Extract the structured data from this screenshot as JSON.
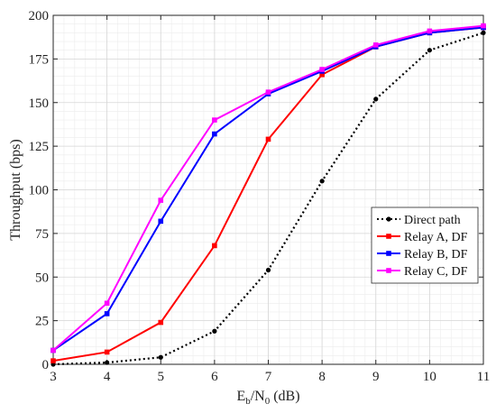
{
  "chart_data": {
    "type": "line",
    "xlabel": "Eb/N0 (dB)",
    "xlabel_parts": {
      "e": "E",
      "b": "b",
      "slash": "/N",
      "zero": "0",
      "unit": " (dB)"
    },
    "ylabel": "Throughput (bps)",
    "xlim": [
      3,
      11
    ],
    "ylim": [
      0,
      200
    ],
    "xticks": [
      3,
      4,
      5,
      6,
      7,
      8,
      9,
      10,
      11
    ],
    "yticks": [
      0,
      25,
      50,
      75,
      100,
      125,
      150,
      175,
      200
    ],
    "grid": true,
    "minor_grid": true,
    "legend_position": "right",
    "x": [
      3,
      4,
      5,
      6,
      7,
      8,
      9,
      10,
      11
    ],
    "series": [
      {
        "name": "Direct path",
        "color": "#000000",
        "dash": "dotted",
        "marker": "circle",
        "values": [
          0,
          1,
          4,
          19,
          54,
          105,
          152,
          180,
          190
        ]
      },
      {
        "name": "Relay A, DF",
        "color": "#ff0000",
        "dash": "solid",
        "marker": "square",
        "values": [
          2,
          7,
          24,
          68,
          129,
          166,
          182,
          190,
          193
        ]
      },
      {
        "name": "Relay B, DF",
        "color": "#0000ff",
        "dash": "solid",
        "marker": "square",
        "values": [
          8,
          29,
          82,
          132,
          155,
          168,
          182,
          190,
          193
        ]
      },
      {
        "name": "Relay C, DF",
        "color": "#ff00ff",
        "dash": "solid",
        "marker": "square",
        "values": [
          8,
          35,
          94,
          140,
          156,
          169,
          183,
          191,
          194
        ]
      }
    ]
  }
}
